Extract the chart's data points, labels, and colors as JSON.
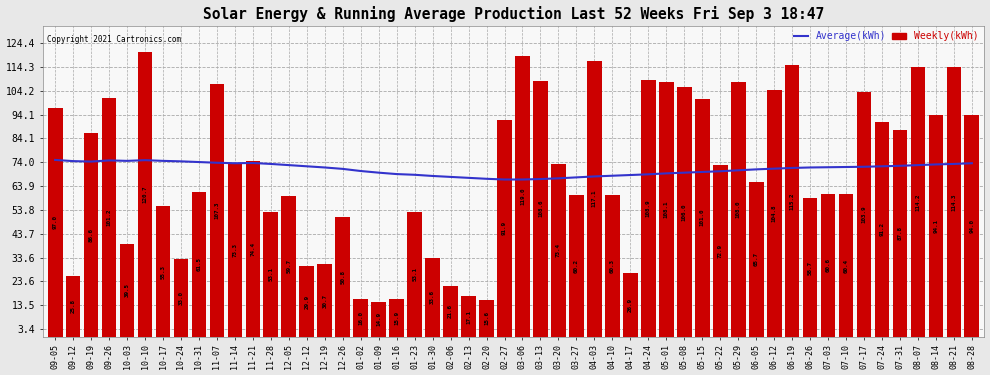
{
  "title": "Solar Energy & Running Average Production Last 52 Weeks Fri Sep 3 18:47",
  "copyright": "Copyright 2021 Cartronics.com",
  "legend_avg": "Average(kWh)",
  "legend_weekly": "Weekly(kWh)",
  "bar_color": "#cc0000",
  "avg_line_color": "#3333cc",
  "background_color": "#f8f8f8",
  "fig_background": "#e8e8e8",
  "yticks": [
    3.4,
    13.5,
    23.6,
    33.6,
    43.7,
    53.8,
    63.9,
    74.0,
    84.1,
    94.1,
    104.2,
    114.3,
    124.4
  ],
  "ylim": [
    0,
    132
  ],
  "labels": [
    "09-05",
    "09-12",
    "09-19",
    "09-26",
    "10-03",
    "10-10",
    "10-17",
    "10-24",
    "10-31",
    "11-07",
    "11-14",
    "11-21",
    "11-28",
    "12-05",
    "12-12",
    "12-19",
    "12-26",
    "01-02",
    "01-09",
    "01-16",
    "01-23",
    "01-30",
    "02-06",
    "02-13",
    "02-20",
    "02-27",
    "03-06",
    "03-13",
    "03-20",
    "03-27",
    "04-03",
    "04-10",
    "04-17",
    "04-24",
    "05-01",
    "05-08",
    "05-15",
    "05-22",
    "05-29",
    "06-05",
    "06-12",
    "06-19",
    "06-26",
    "07-03",
    "07-10",
    "07-17",
    "07-24",
    "07-31",
    "08-07",
    "08-14",
    "08-21",
    "08-28"
  ],
  "weekly_values": [
    97.0,
    25.8,
    86.6,
    101.2,
    39.5,
    120.7,
    55.3,
    33.0,
    61.5,
    107.3,
    73.3,
    74.4,
    53.1,
    59.7,
    29.9,
    30.7,
    50.8,
    16.0,
    14.9,
    15.9,
    53.1,
    33.6,
    21.6,
    17.1,
    15.6,
    91.9,
    119.0,
    108.6,
    73.4,
    60.2,
    117.1,
    60.3,
    26.9,
    108.9,
    108.1,
    106.0,
    101.0,
    72.9,
    108.0,
    65.7,
    104.8,
    115.2,
    58.7,
    60.6,
    60.4,
    103.9,
    91.2,
    87.8,
    114.2,
    94.1,
    114.3,
    94.0
  ],
  "avg_values": [
    75.0,
    74.5,
    74.3,
    74.8,
    74.6,
    74.9,
    74.6,
    74.4,
    74.1,
    73.8,
    73.6,
    73.7,
    73.3,
    72.8,
    72.3,
    71.8,
    71.2,
    70.3,
    69.6,
    69.0,
    68.7,
    68.2,
    67.8,
    67.4,
    67.0,
    66.7,
    66.7,
    66.9,
    67.2,
    67.6,
    68.0,
    68.3,
    68.6,
    68.9,
    69.3,
    69.6,
    69.9,
    70.2,
    70.6,
    71.0,
    71.3,
    71.6,
    71.8,
    71.9,
    72.0,
    72.1,
    72.3,
    72.5,
    72.8,
    73.1,
    73.3,
    73.6
  ]
}
